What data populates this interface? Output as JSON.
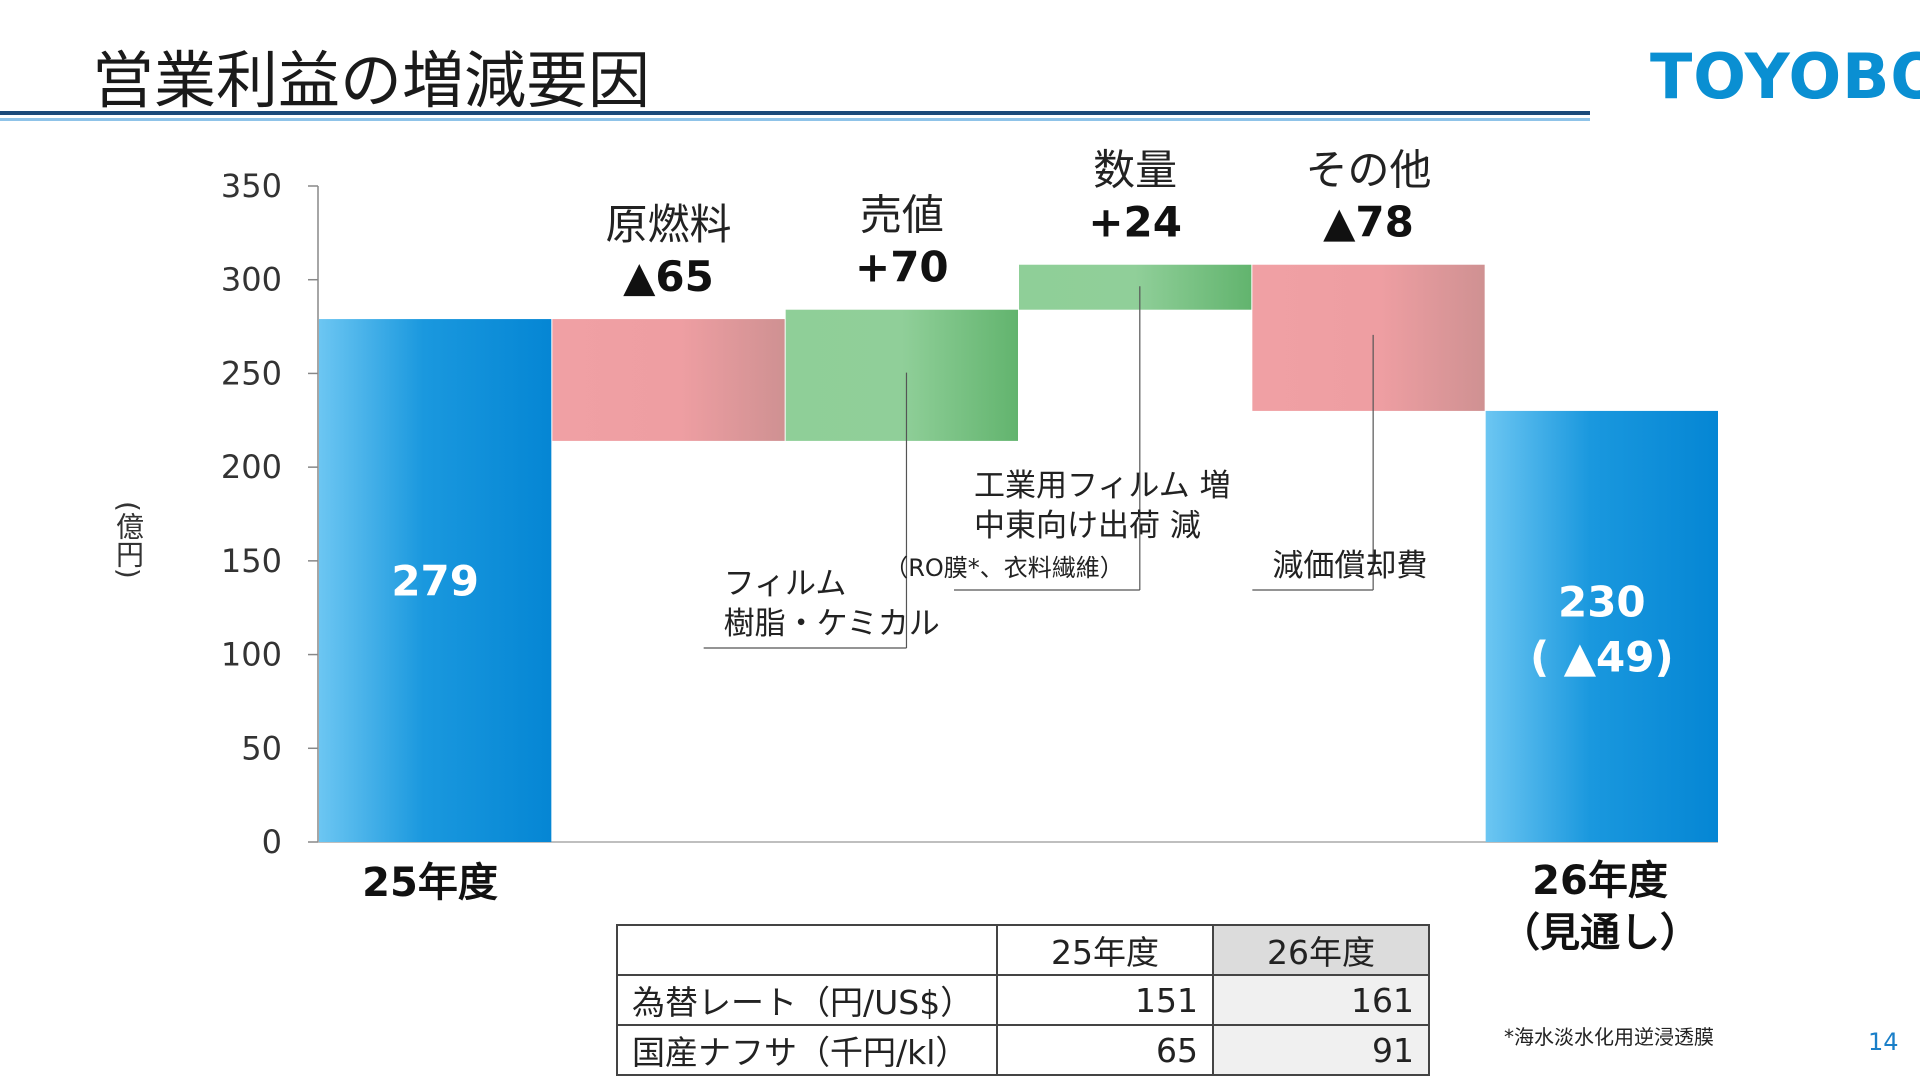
{
  "page": {
    "title": "営業利益の増減要因",
    "logo": "TOYOBO",
    "page_number": "14",
    "footnote": "*海水淡水化用逆浸透膜"
  },
  "chart_data": {
    "type": "waterfall",
    "ylabel": "(億円)",
    "ylim": [
      0,
      350
    ],
    "yticks": [
      0,
      50,
      100,
      150,
      200,
      250,
      300,
      350
    ],
    "grid": false,
    "steps": [
      {
        "kind": "total",
        "category": "25年度",
        "value": 279,
        "label": "279",
        "color": "#0b8bd6"
      },
      {
        "kind": "delta",
        "name": "原燃料",
        "delta": -65,
        "label": "▲65",
        "color": "#d4898f"
      },
      {
        "kind": "delta",
        "name": "売値",
        "delta": 70,
        "label": "+70",
        "color": "#6cbb78",
        "callout": [
          "フィルム",
          "樹脂・ケミカル"
        ]
      },
      {
        "kind": "delta",
        "name": "数量",
        "delta": 24,
        "label": "+24",
        "color": "#6cbb78",
        "callout": [
          "工業用フィルム 増",
          "中東向け出荷 減",
          "（RO膜*、衣料繊維）"
        ]
      },
      {
        "kind": "delta",
        "name": "その他",
        "delta": -78,
        "label": "▲78",
        "color": "#d4898f",
        "callout": [
          "減価償却費"
        ]
      },
      {
        "kind": "total",
        "category": "26年度",
        "category_note": "（見通し）",
        "value": 230,
        "label": "230",
        "sublabel": "( ▲49)",
        "color": "#0b8bd6"
      }
    ]
  },
  "fx_table": {
    "header": [
      "",
      "25年度",
      "26年度"
    ],
    "rows": [
      [
        "為替レート（円/US$）",
        "151",
        "161"
      ],
      [
        "国産ナフサ（千円/kl）",
        "65",
        "91"
      ]
    ]
  }
}
